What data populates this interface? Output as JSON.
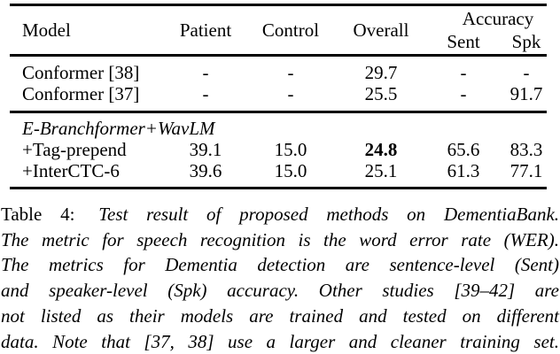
{
  "colors": {
    "text": "#000000",
    "background": "#ffffff",
    "rule": "#000000"
  },
  "table": {
    "headers": {
      "model": "Model",
      "patient": "Patient",
      "control": "Control",
      "overall": "Overall",
      "accuracy_group": "Accuracy",
      "sent": "Sent",
      "spk": "Spk"
    },
    "baseline_rows": [
      {
        "model": "Conformer [38]",
        "patient": "-",
        "control": "-",
        "overall": "29.7",
        "sent": "-",
        "spk": "-"
      },
      {
        "model": "Conformer [37]",
        "patient": "-",
        "control": "-",
        "overall": "25.5",
        "sent": "-",
        "spk": "91.7"
      }
    ],
    "proposed_group_label": "E-Branchformer+WavLM",
    "proposed_rows": [
      {
        "model": "+Tag-prepend",
        "patient": "39.1",
        "control": "15.0",
        "overall": "24.8",
        "sent": "65.6",
        "spk": "83.3"
      },
      {
        "model": "+InterCTC-6",
        "patient": "39.6",
        "control": "15.0",
        "overall": "25.1",
        "sent": "61.3",
        "spk": "77.1"
      }
    ]
  },
  "caption": {
    "label": "Table 4:",
    "lines": [
      "Test result of proposed methods on DementiaBank.",
      "The metric for speech recognition is the word error rate (WER).",
      "The metrics for Dementia detection are sentence-level (Sent)",
      "and speaker-level (Spk) accuracy. Other studies [39–42] are",
      "not listed as their models are trained and tested on different",
      "data. Note that [37, 38] use a larger and cleaner training set."
    ]
  }
}
